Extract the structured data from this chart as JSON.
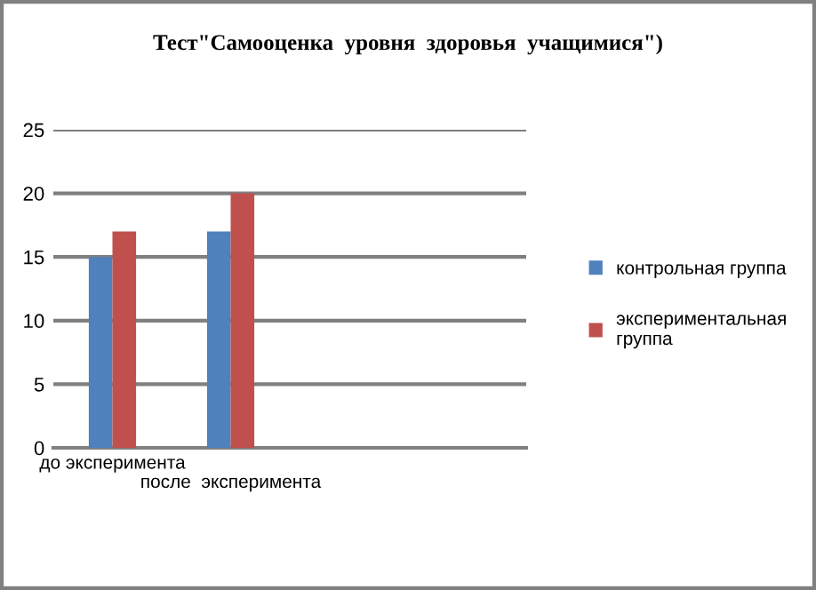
{
  "chart_data": {
    "type": "bar",
    "title": "Тест\"Самооценка  уровня  здоровья  учащимися\")",
    "categories": [
      "до эксперимента",
      "после  эксперимента",
      null,
      null
    ],
    "series": [
      {
        "name": "контрольная группа",
        "color": "#4f81bd",
        "values": [
          15,
          17,
          null,
          null
        ]
      },
      {
        "name": "экспериментальная группа",
        "color": "#c0504d",
        "values": [
          17,
          20,
          null,
          null
        ]
      }
    ],
    "ylim": [
      0,
      25
    ],
    "yticks": [
      0,
      5,
      10,
      15,
      20,
      25
    ],
    "grid": "y",
    "legend": "right"
  }
}
